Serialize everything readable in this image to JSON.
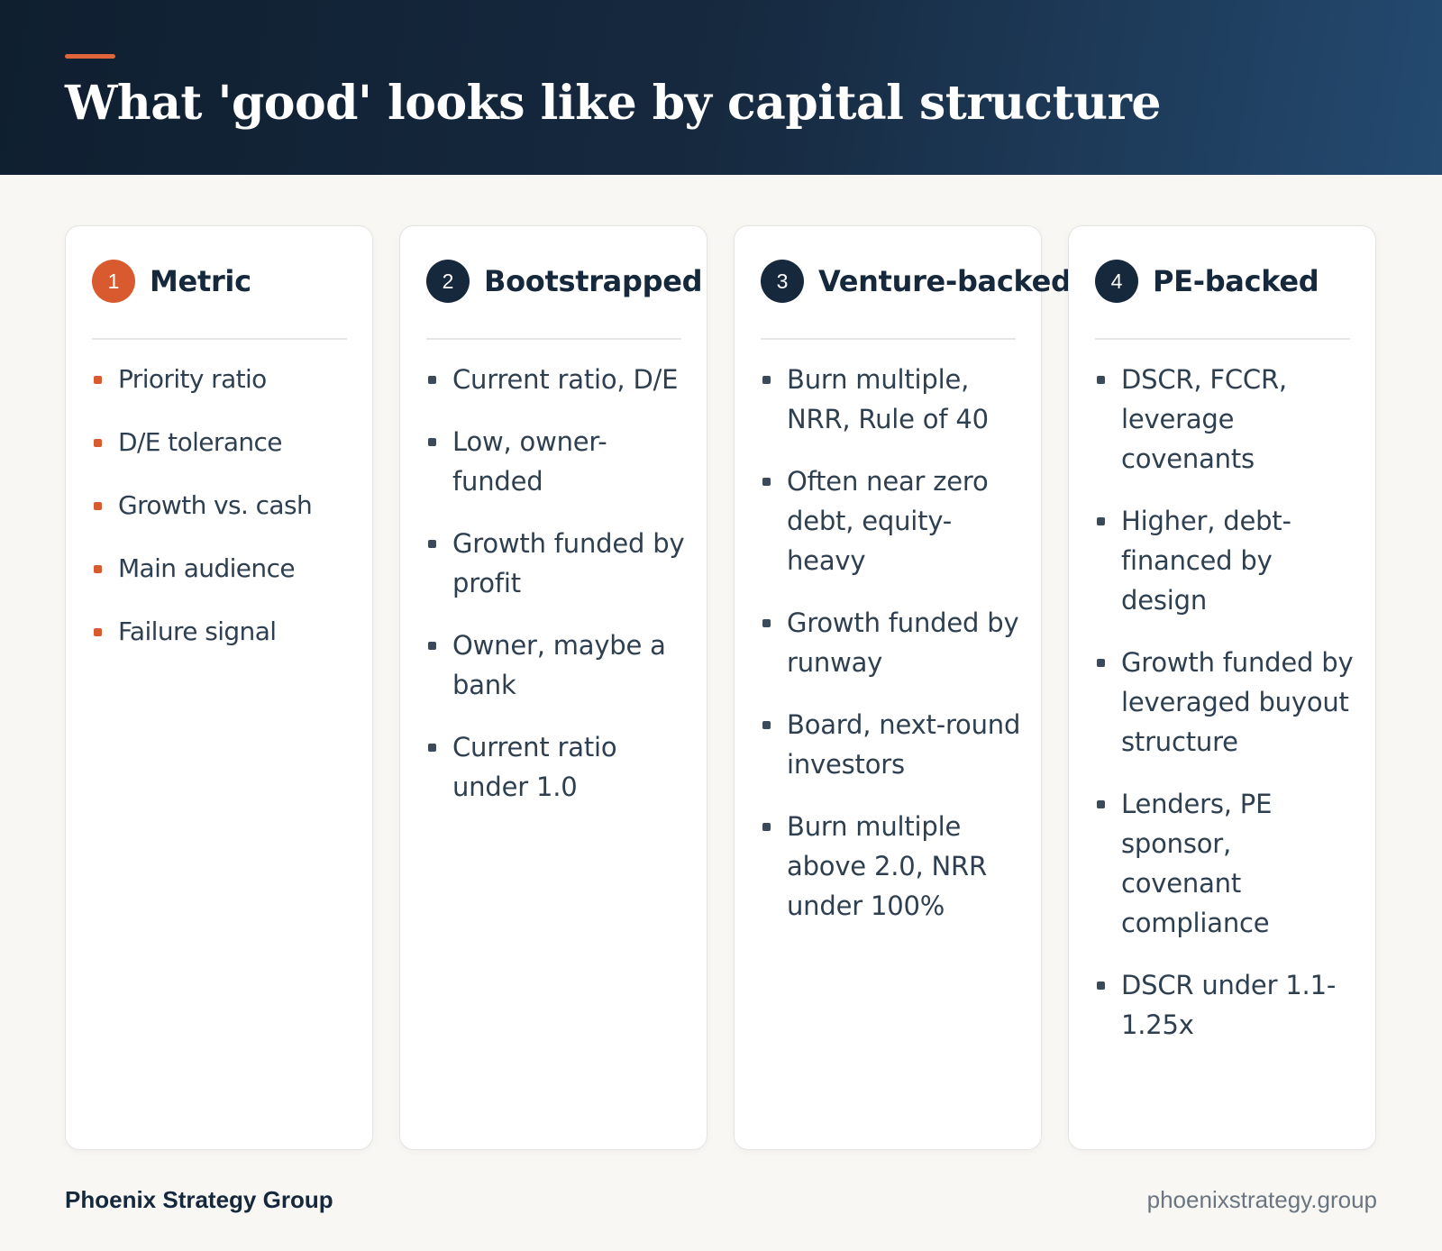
{
  "header": {
    "title": "What 'good' looks like by capital structure"
  },
  "columns": [
    {
      "number": "1",
      "title": "Metric",
      "items": [
        "Priority ratio",
        "D/E tolerance",
        "Growth vs. cash",
        "Main audience",
        "Failure signal"
      ]
    },
    {
      "number": "2",
      "title": "Bootstrapped",
      "items": [
        "Current ratio, D/E",
        "Low, owner-funded",
        "Growth funded by profit",
        "Owner, maybe a bank",
        "Current ratio under 1.0"
      ]
    },
    {
      "number": "3",
      "title": "Venture-backed",
      "items": [
        "Burn multiple, NRR, Rule of 40",
        "Often near zero debt, equity-heavy",
        "Growth funded by runway",
        "Board, next-round investors",
        "Burn multiple above 2.0, NRR under 100%"
      ]
    },
    {
      "number": "4",
      "title": "PE-backed",
      "items": [
        "DSCR, FCCR, leverage covenants",
        "Higher, debt-financed by design",
        "Growth funded by leveraged buyout structure",
        "Lenders, PE sponsor, covenant compliance",
        "DSCR under 1.1-1.25x"
      ]
    }
  ],
  "footer": {
    "brand": "Phoenix Strategy Group",
    "url": "phoenixstrategy.group"
  },
  "colors": {
    "accent": "#d85a2e",
    "navy": "#16283b",
    "background": "#f8f7f4"
  }
}
